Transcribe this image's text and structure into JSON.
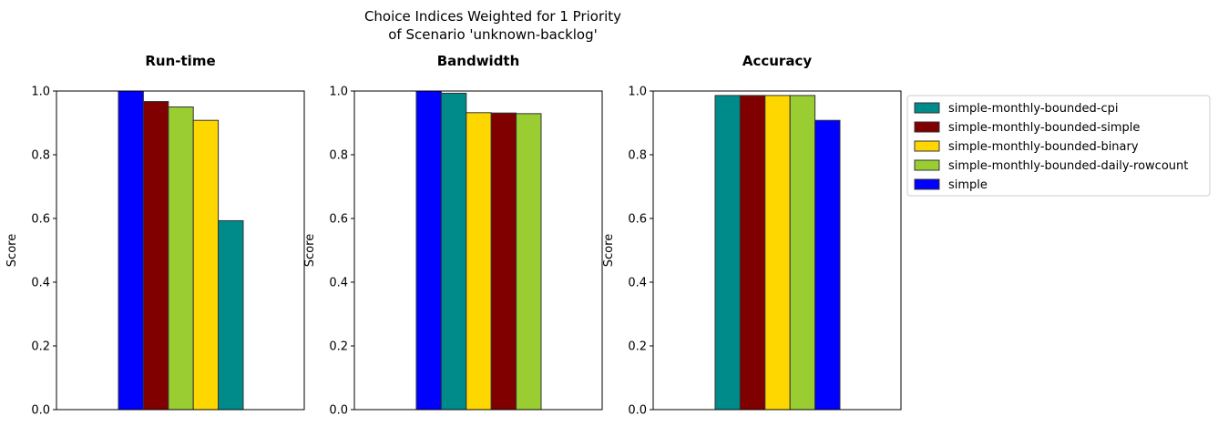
{
  "figure": {
    "suptitle_line1": "Choice Indices Weighted for 1 Priority",
    "suptitle_line2": "of Scenario 'unknown-backlog'"
  },
  "chart_data": [
    {
      "type": "bar",
      "title": "Run-time",
      "ylabel": "Score",
      "ylim": [
        0,
        1.0
      ],
      "yticks": [
        "0.0",
        "0.2",
        "0.4",
        "0.6",
        "0.8",
        "1.0"
      ],
      "bars": [
        {
          "name": "simple",
          "value": 1.0,
          "color": "#0000ff"
        },
        {
          "name": "simple-monthly-bounded-simple",
          "value": 0.967,
          "color": "#800000"
        },
        {
          "name": "simple-monthly-bounded-daily-rowcount",
          "value": 0.95,
          "color": "#9acd32"
        },
        {
          "name": "simple-monthly-bounded-binary",
          "value": 0.908,
          "color": "#ffd700"
        },
        {
          "name": "simple-monthly-bounded-cpi",
          "value": 0.593,
          "color": "#008b8b"
        }
      ]
    },
    {
      "type": "bar",
      "title": "Bandwidth",
      "ylabel": "Score",
      "ylim": [
        0,
        1.0
      ],
      "yticks": [
        "0.0",
        "0.2",
        "0.4",
        "0.6",
        "0.8",
        "1.0"
      ],
      "bars": [
        {
          "name": "simple",
          "value": 1.0,
          "color": "#0000ff"
        },
        {
          "name": "simple-monthly-bounded-cpi",
          "value": 0.993,
          "color": "#008b8b"
        },
        {
          "name": "simple-monthly-bounded-binary",
          "value": 0.932,
          "color": "#ffd700"
        },
        {
          "name": "simple-monthly-bounded-simple",
          "value": 0.931,
          "color": "#800000"
        },
        {
          "name": "simple-monthly-bounded-daily-rowcount",
          "value": 0.929,
          "color": "#9acd32"
        }
      ]
    },
    {
      "type": "bar",
      "title": "Accuracy",
      "ylabel": "Score",
      "ylim": [
        0,
        1.0
      ],
      "yticks": [
        "0.0",
        "0.2",
        "0.4",
        "0.6",
        "0.8",
        "1.0"
      ],
      "bars": [
        {
          "name": "simple-monthly-bounded-cpi",
          "value": 0.986,
          "color": "#008b8b"
        },
        {
          "name": "simple-monthly-bounded-simple",
          "value": 0.986,
          "color": "#800000"
        },
        {
          "name": "simple-monthly-bounded-binary",
          "value": 0.986,
          "color": "#ffd700"
        },
        {
          "name": "simple-monthly-bounded-daily-rowcount",
          "value": 0.986,
          "color": "#9acd32"
        },
        {
          "name": "simple",
          "value": 0.908,
          "color": "#0000ff"
        }
      ]
    }
  ],
  "legend": {
    "placement": "right of last panel, top",
    "entries": [
      {
        "label": "simple-monthly-bounded-cpi",
        "color": "#008b8b"
      },
      {
        "label": "simple-monthly-bounded-simple",
        "color": "#800000"
      },
      {
        "label": "simple-monthly-bounded-binary",
        "color": "#ffd700"
      },
      {
        "label": "simple-monthly-bounded-daily-rowcount",
        "color": "#9acd32"
      },
      {
        "label": "simple",
        "color": "#0000ff"
      }
    ]
  }
}
